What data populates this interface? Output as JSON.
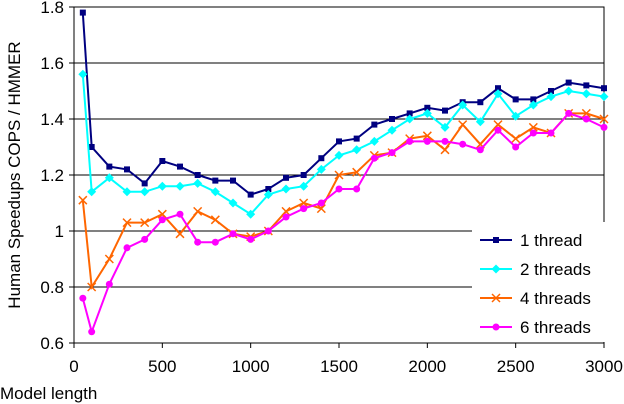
{
  "chart_data": {
    "type": "line",
    "title": "",
    "xlabel": "Model  length",
    "ylabel": "Human  Speedups  COPS / HMMER",
    "xlim": [
      0,
      3000
    ],
    "ylim": [
      0.6,
      1.8
    ],
    "xticks": [
      0,
      500,
      1000,
      1500,
      2000,
      2500,
      3000
    ],
    "xtick_labels": [
      "0",
      "500",
      "1000",
      "1500",
      "2000",
      "2500",
      "3000"
    ],
    "yticks": [
      0.6,
      0.8,
      1.0,
      1.2,
      1.4,
      1.6,
      1.8
    ],
    "ytick_labels": [
      "0.6",
      "0.8",
      "1",
      "1.2",
      "1.4",
      "1.6",
      "1.8"
    ],
    "grid": "horizontal",
    "legend_position": "bottom-right",
    "x": [
      50,
      100,
      200,
      300,
      400,
      500,
      600,
      700,
      800,
      900,
      1000,
      1100,
      1200,
      1300,
      1400,
      1500,
      1600,
      1700,
      1800,
      1900,
      2000,
      2100,
      2200,
      2300,
      2400,
      2500,
      2600,
      2700,
      2800,
      2900,
      3000
    ],
    "series": [
      {
        "name": "1 thread",
        "color": "#000080",
        "marker": "square",
        "values": [
          1.78,
          1.3,
          1.23,
          1.22,
          1.17,
          1.25,
          1.23,
          1.2,
          1.18,
          1.18,
          1.13,
          1.15,
          1.19,
          1.2,
          1.26,
          1.32,
          1.33,
          1.38,
          1.4,
          1.42,
          1.44,
          1.43,
          1.46,
          1.46,
          1.51,
          1.47,
          1.47,
          1.5,
          1.53,
          1.52,
          1.51
        ]
      },
      {
        "name": "2 threads",
        "color": "#00FFFF",
        "marker": "diamond",
        "values": [
          1.56,
          1.14,
          1.19,
          1.14,
          1.14,
          1.16,
          1.16,
          1.17,
          1.14,
          1.1,
          1.06,
          1.13,
          1.15,
          1.16,
          1.22,
          1.27,
          1.29,
          1.32,
          1.36,
          1.4,
          1.42,
          1.37,
          1.45,
          1.39,
          1.49,
          1.41,
          1.45,
          1.48,
          1.5,
          1.49,
          1.48
        ]
      },
      {
        "name": "4 threads",
        "color": "#FF6600",
        "marker": "x",
        "values": [
          1.11,
          0.8,
          0.9,
          1.03,
          1.03,
          1.06,
          0.99,
          1.07,
          1.04,
          0.99,
          0.98,
          1.0,
          1.07,
          1.1,
          1.08,
          1.2,
          1.21,
          1.27,
          1.28,
          1.33,
          1.34,
          1.29,
          1.38,
          1.31,
          1.38,
          1.33,
          1.37,
          1.35,
          1.42,
          1.42,
          1.4
        ]
      },
      {
        "name": "6 threads",
        "color": "#FF00FF",
        "marker": "circle",
        "values": [
          0.76,
          0.64,
          0.81,
          0.94,
          0.97,
          1.04,
          1.06,
          0.96,
          0.96,
          0.99,
          0.97,
          1.0,
          1.05,
          1.08,
          1.1,
          1.15,
          1.15,
          1.26,
          1.28,
          1.32,
          1.32,
          1.32,
          1.31,
          1.29,
          1.36,
          1.3,
          1.35,
          1.35,
          1.42,
          1.4,
          1.37
        ]
      }
    ]
  }
}
